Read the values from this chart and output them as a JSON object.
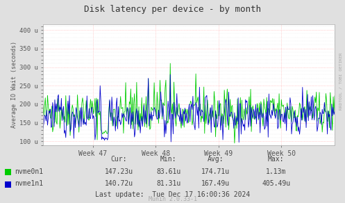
{
  "title": "Disk latency per device - by month",
  "ylabel": "Average IO Wait (seconds)",
  "ytick_labels": [
    "100 u",
    "150 u",
    "200 u",
    "250 u",
    "300 u",
    "350 u",
    "400 u"
  ],
  "ytick_values": [
    100,
    150,
    200,
    250,
    300,
    350,
    400
  ],
  "ylim": [
    90,
    415
  ],
  "xtick_labels": [
    "Week 47",
    "Week 48",
    "Week 49",
    "Week 50"
  ],
  "bg_color": "#e0e0e0",
  "plot_bg_color": "#ffffff",
  "line1_color": "#00cc00",
  "line2_color": "#0000cc",
  "legend": [
    "nvme0n1",
    "nvme1n1"
  ],
  "stats_headers": [
    "Cur:",
    "Min:",
    "Avg:",
    "Max:"
  ],
  "stats_nvme0": [
    "147.23u",
    "83.61u",
    "174.71u",
    "1.13m"
  ],
  "stats_nvme1": [
    "140.72u",
    "81.31u",
    "167.49u",
    "405.49u"
  ],
  "last_update": "Last update:  Tue Dec 17 16:00:36 2024",
  "munin_version": "Munin 2.0.33-1",
  "rrdtool_label": "RRDTOOL / TOBI OETIKER",
  "n_points": 400,
  "seed": 42
}
